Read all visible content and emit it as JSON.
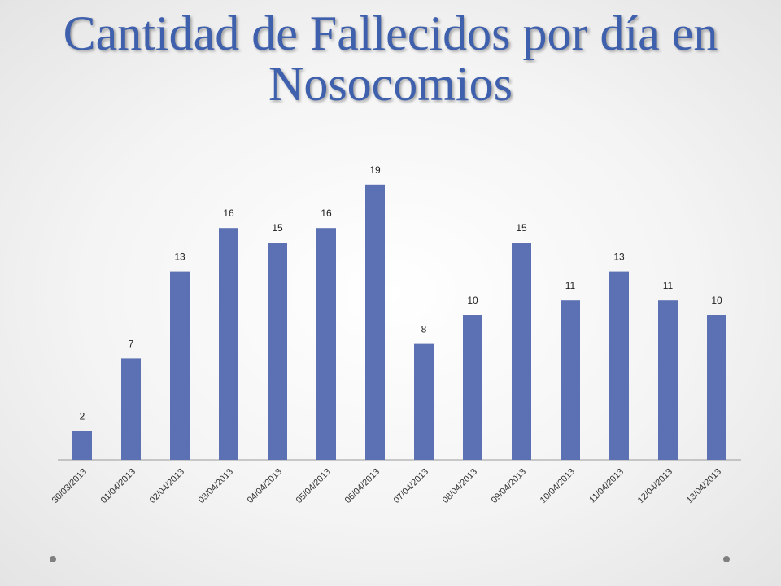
{
  "chart_data": {
    "type": "bar",
    "title": "Cantidad de Fallecidos por día en Nosocomios",
    "categories": [
      "30/03/2013",
      "01/04/2013",
      "02/04/2013",
      "03/04/2013",
      "04/04/2013",
      "05/04/2013",
      "06/04/2013",
      "07/04/2013",
      "08/04/2013",
      "09/04/2013",
      "10/04/2013",
      "11/04/2013",
      "12/04/2013",
      "13/04/2013"
    ],
    "values": [
      2,
      7,
      13,
      16,
      15,
      16,
      19,
      8,
      10,
      15,
      11,
      13,
      11,
      10
    ],
    "color": "#5b71b3",
    "ylim": [
      0,
      20
    ]
  }
}
